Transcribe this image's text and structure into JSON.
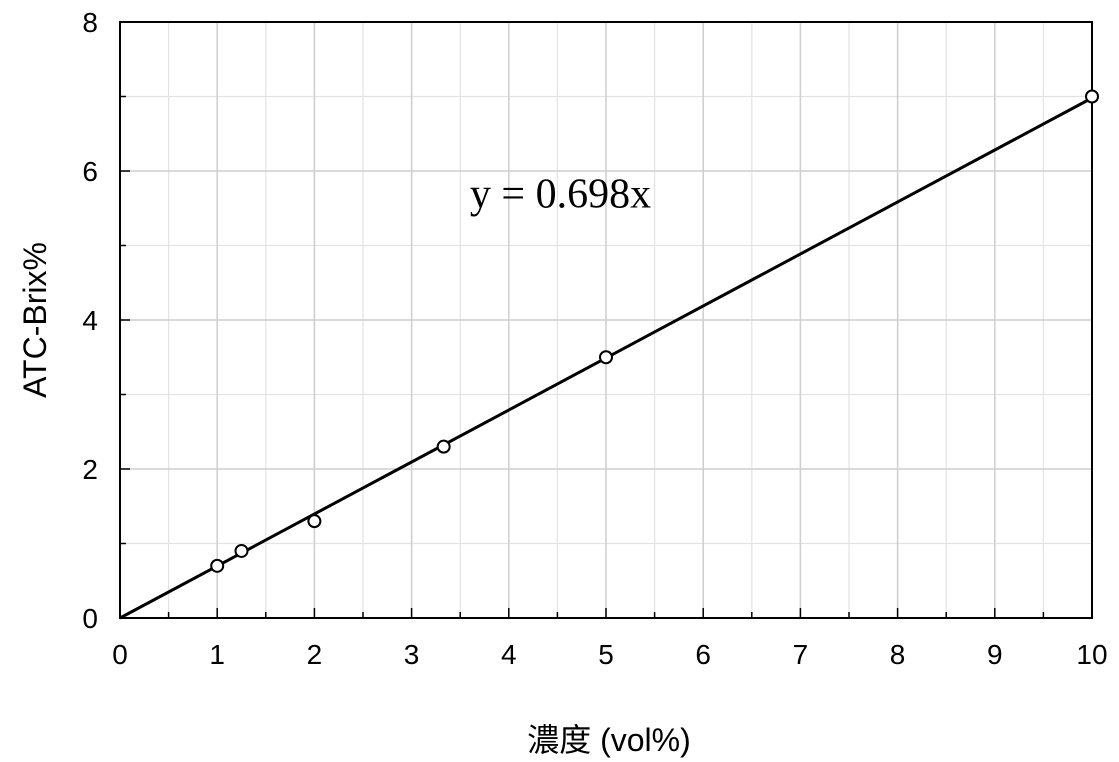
{
  "chart_data": {
    "type": "scatter",
    "xlabel": "濃度 (vol%)",
    "ylabel": "ATC-Brix%",
    "xlim": [
      0,
      10
    ],
    "ylim": [
      0,
      8
    ],
    "x_ticks": [
      0,
      1,
      2,
      3,
      4,
      5,
      6,
      7,
      8,
      9,
      10
    ],
    "y_ticks": [
      0,
      2,
      4,
      6,
      8
    ],
    "x_minor_step": 0.5,
    "y_minor_step": 1,
    "grid": true,
    "series": [
      {
        "points": [
          {
            "x": 1.0,
            "y": 0.7
          },
          {
            "x": 1.25,
            "y": 0.9
          },
          {
            "x": 2.0,
            "y": 1.3
          },
          {
            "x": 3.33,
            "y": 2.3
          },
          {
            "x": 5.0,
            "y": 3.5
          },
          {
            "x": 10.0,
            "y": 7.0
          }
        ],
        "color": "#000000",
        "marker": "circle-open"
      }
    ],
    "trendline": {
      "slope": 0.698,
      "intercept": 0,
      "x_range": [
        0,
        10
      ],
      "color": "#000000"
    },
    "annotation": {
      "text": "y = 0.698x",
      "x": 3.6,
      "y": 5.7
    },
    "colors": {
      "major_grid": "#cfcfcf",
      "minor_grid": "#e3e3e3",
      "axis": "#000000"
    }
  }
}
